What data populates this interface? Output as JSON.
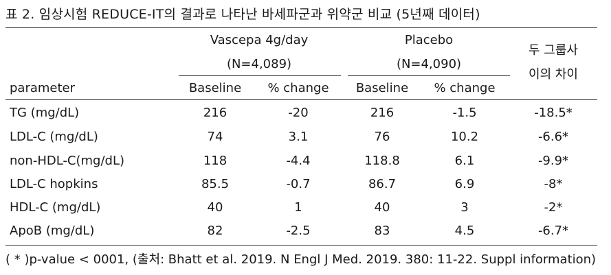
{
  "caption": "표 2. 임상시험 REDUCE-IT의 결과로 나타난 바세파군과 위약군 비교 (5년째 데이터)",
  "groups": [
    {
      "name": "Vascepa 4g/day",
      "n": "(N=4,089)"
    },
    {
      "name": "Placebo",
      "n": "(N=4,090)"
    }
  ],
  "diff_header": {
    "line1": "두 그룹사",
    "line2": "이의 차이"
  },
  "columns": {
    "parameter": "parameter",
    "baseline_1": "Baseline",
    "change_1": "% change",
    "baseline_2": "Baseline",
    "change_2": "% change"
  },
  "rows": [
    {
      "parameter": "TG (mg/dL)",
      "v_base": "216",
      "v_change": "-20",
      "p_base": "216",
      "p_change": "-1.5",
      "diff": "-18.5*"
    },
    {
      "parameter": "LDL-C (mg/dL)",
      "v_base": "74",
      "v_change": "3.1",
      "p_base": "76",
      "p_change": "10.2",
      "diff": "-6.6*"
    },
    {
      "parameter": "non-HDL-C(mg/dL)",
      "v_base": "118",
      "v_change": "-4.4",
      "p_base": "118.8",
      "p_change": "6.1",
      "diff": "-9.9*"
    },
    {
      "parameter": "LDL-C hopkins",
      "v_base": "85.5",
      "v_change": "-0.7",
      "p_base": "86.7",
      "p_change": "6.9",
      "diff": "-8*"
    },
    {
      "parameter": "HDL-C (mg/dL)",
      "v_base": "40",
      "v_change": "1",
      "p_base": "40",
      "p_change": "3",
      "diff": "-2*"
    },
    {
      "parameter": "ApoB (mg/dL)",
      "v_base": "82",
      "v_change": "-2.5",
      "p_base": "83",
      "p_change": "4.5",
      "diff": "-6.7*"
    }
  ],
  "footnote": "( * )p-value < 0001, (출처: Bhatt et al. 2019. N Engl J Med. 2019. 380: 11-22. Suppl information)"
}
